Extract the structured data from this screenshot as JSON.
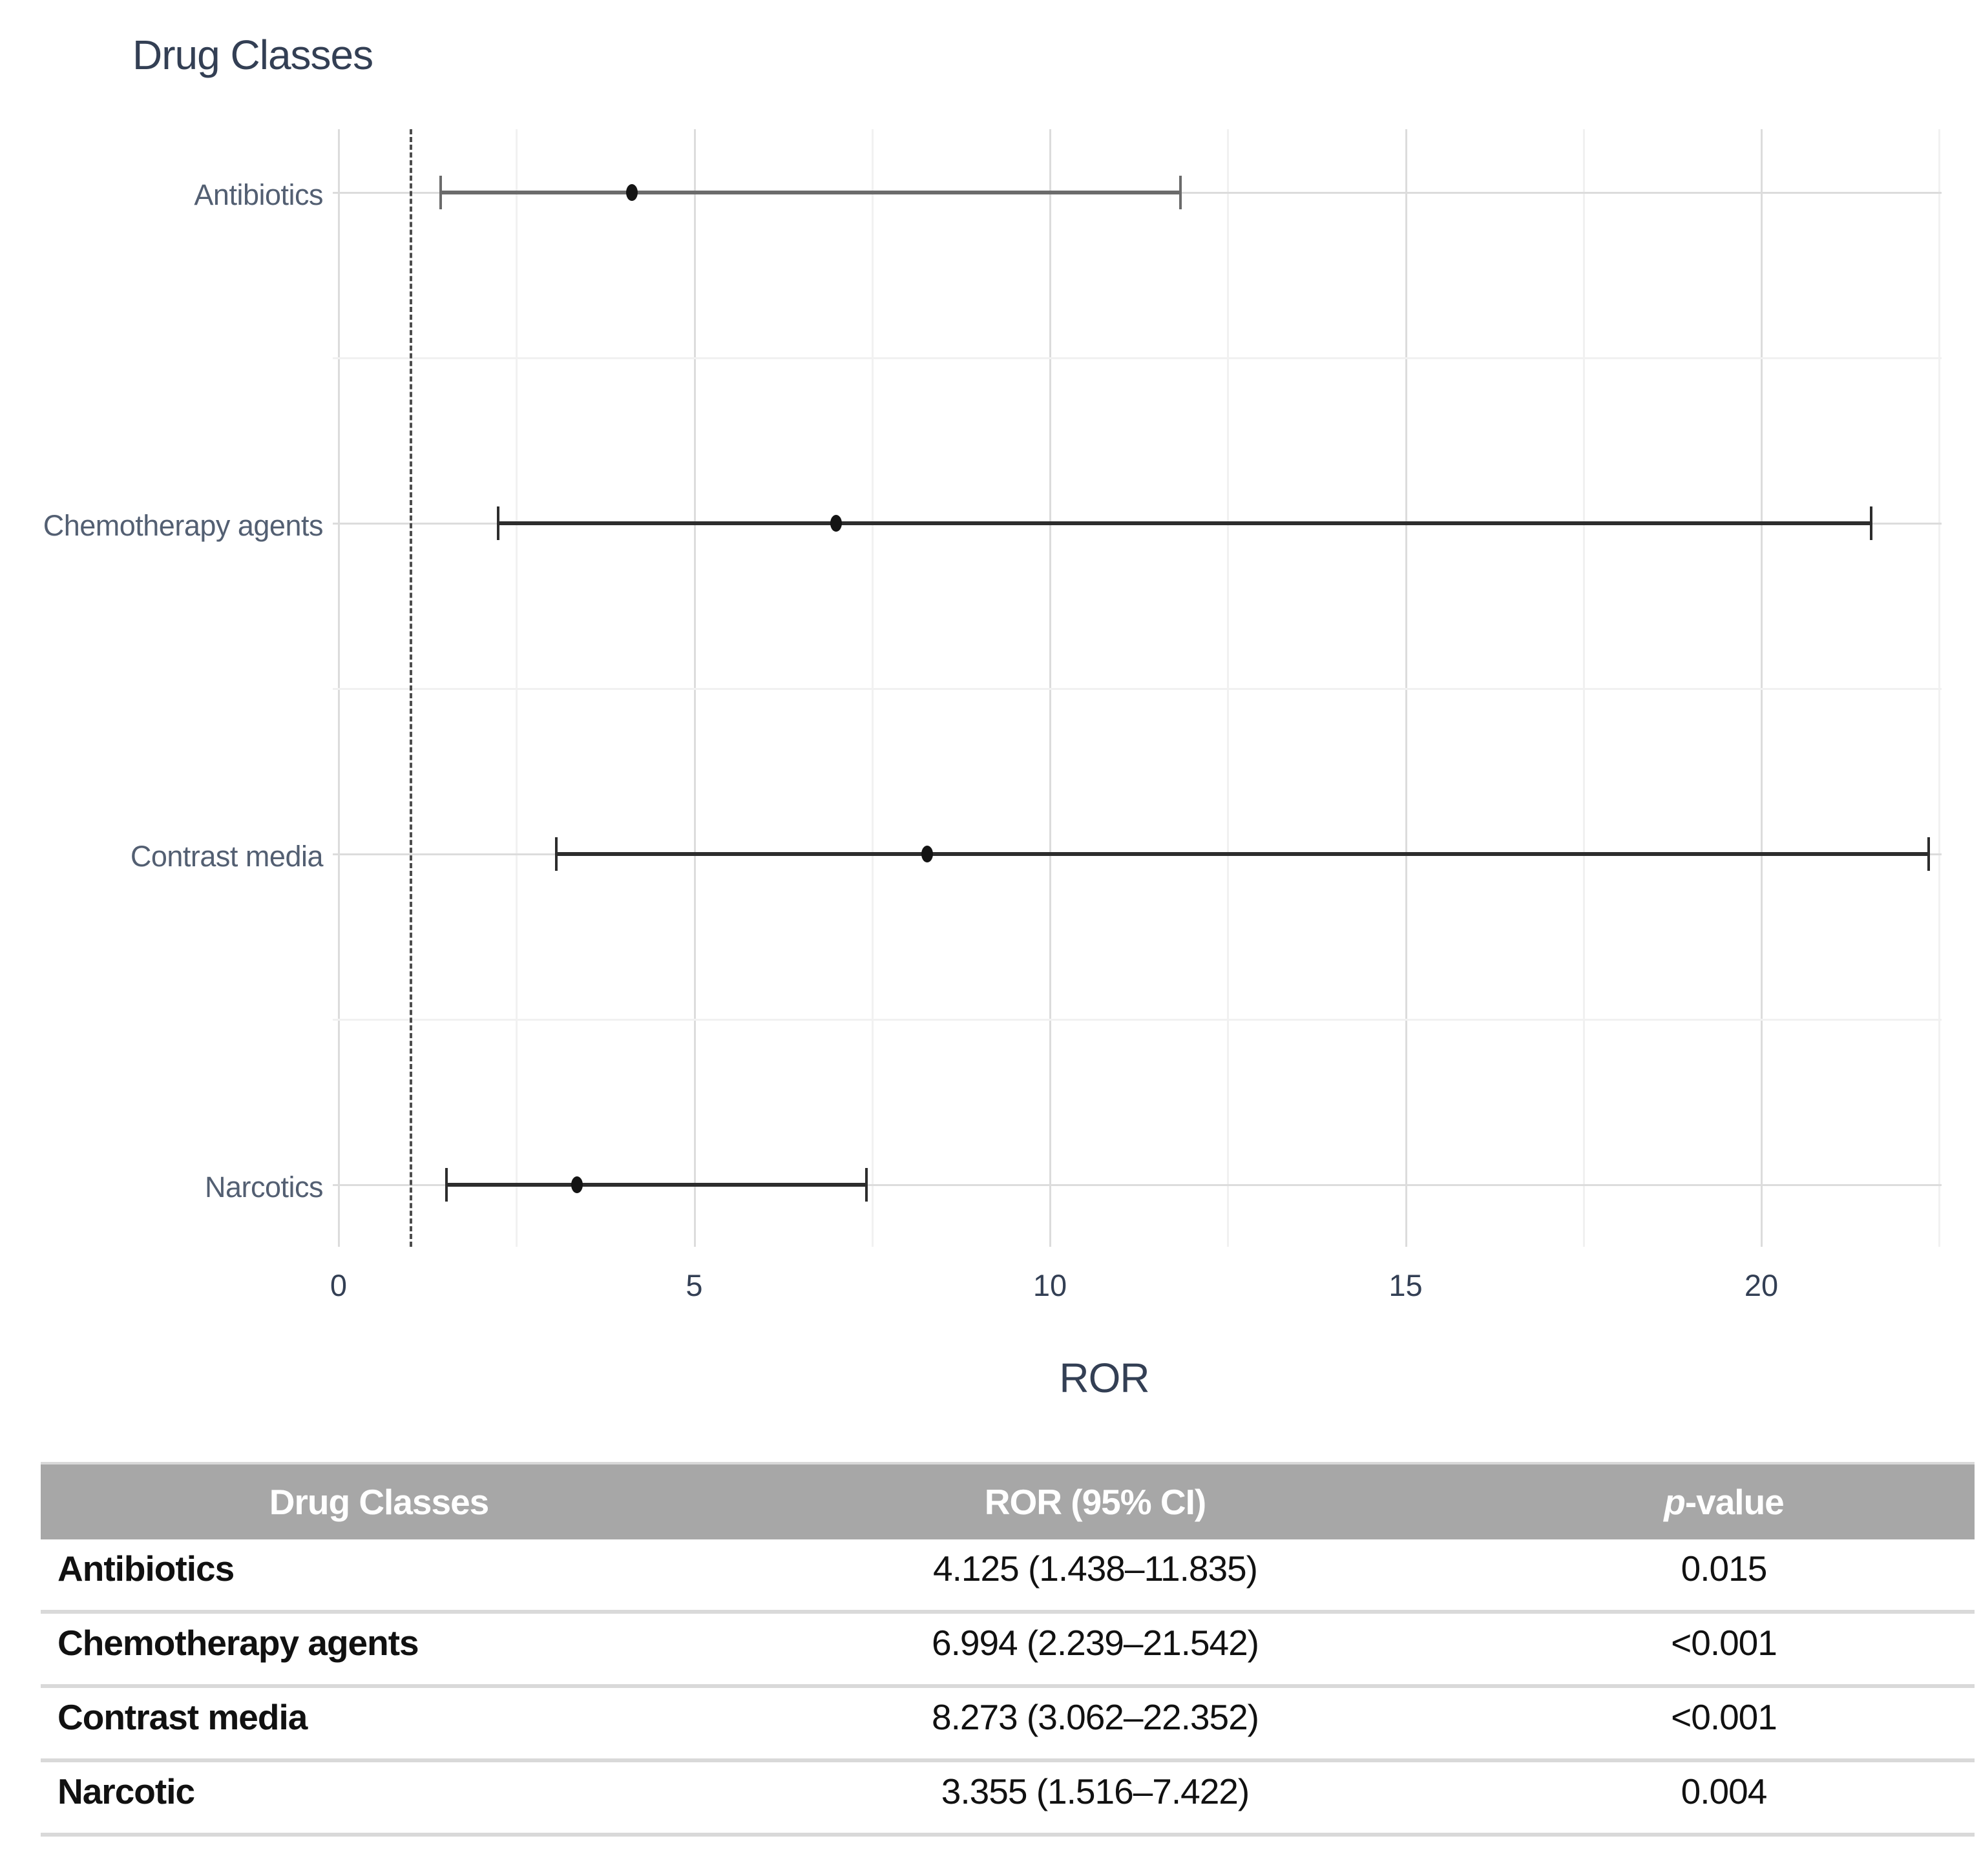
{
  "chart_data": {
    "type": "forest",
    "title": "Drug Classes",
    "xlabel": "ROR",
    "xlim": [
      0,
      22.5
    ],
    "x_ticks": [
      0,
      5,
      10,
      15,
      20
    ],
    "x_minor_grid_step": 2.5,
    "reference_line_x": 1,
    "grid": "on",
    "legend": "none",
    "categories": [
      "Antibiotics",
      "Chemotherapy agents",
      "Contrast media",
      "Narcotics"
    ],
    "points": [
      {
        "label": "Antibiotics",
        "ror": 4.125,
        "ci_low": 1.438,
        "ci_high": 11.835,
        "bar_color": "#6b6b6b"
      },
      {
        "label": "Chemotherapy agents",
        "ror": 6.994,
        "ci_low": 2.239,
        "ci_high": 21.542,
        "bar_color": "#2d2d2d"
      },
      {
        "label": "Contrast media",
        "ror": 8.273,
        "ci_low": 3.062,
        "ci_high": 22.352,
        "bar_color": "#2d2d2d"
      },
      {
        "label": "Narcotics",
        "ror": 3.355,
        "ci_low": 1.516,
        "ci_high": 7.422,
        "bar_color": "#2d2d2d"
      }
    ]
  },
  "table": {
    "headers": {
      "col1": "Drug Classes",
      "col2": "ROR (95% CI)",
      "col3_italic": "p",
      "col3_rest": "-value"
    },
    "rows": [
      {
        "name": "Antibiotics",
        "ror_ci": "4.125 (1.438–11.835)",
        "p_value": "0.015"
      },
      {
        "name": "Chemotherapy agents",
        "ror_ci": "6.994 (2.239–21.542)",
        "p_value": "<0.001"
      },
      {
        "name": "Contrast media",
        "ror_ci": "8.273 (3.062–22.352)",
        "p_value": "<0.001"
      },
      {
        "name": "Narcotic",
        "ror_ci": "3.355 (1.516–7.422)",
        "p_value": "0.004"
      }
    ]
  },
  "colors": {
    "title_text": "#333f54",
    "axis_text": "#333f54",
    "category_text": "#535f72",
    "grid_major": "#dcdcdc",
    "grid_minor": "#f1f1f1",
    "ref_line": "#4d4d4d",
    "point": "#141414",
    "table_header_bg": "#a7a7a7",
    "table_header_text": "#ffffff",
    "table_row_border": "#d9d9d9",
    "table_text": "#111111"
  }
}
